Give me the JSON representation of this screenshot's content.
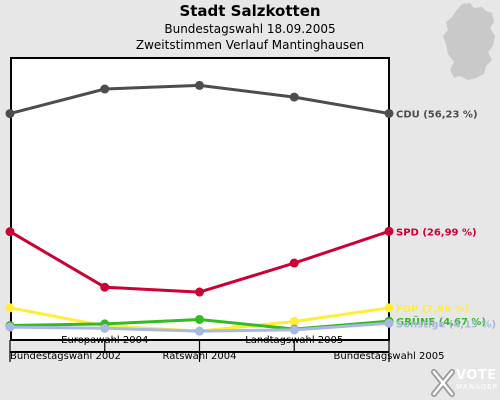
{
  "header": {
    "title": "Stadt Salzkotten",
    "subtitle1": "Bundestagswahl 18.09.2005",
    "subtitle2": "Zweitstimmen Verlauf Mantinghausen"
  },
  "logo": {
    "brand": "VOTE",
    "sub": "MANAGER"
  },
  "chart_data": {
    "type": "line",
    "categories": [
      "Bundestagswahl 2002",
      "Europawahl 2004",
      "Ratswahl 2004",
      "Landtagswahl 2005",
      "Bundestagswahl 2005"
    ],
    "label_rows": [
      "bottom",
      "top",
      "bottom",
      "top",
      "bottom"
    ],
    "ylim": [
      0,
      70
    ],
    "grid": false,
    "series": [
      {
        "name": "CDU",
        "value_label": "CDU (56,23 %)",
        "color": "#4d4d4d",
        "values": [
          56.2,
          62.3,
          63.2,
          60.3,
          56.23
        ]
      },
      {
        "name": "SPD",
        "value_label": "SPD (26,99 %)",
        "color": "#cc0033",
        "values": [
          26.9,
          13.1,
          11.9,
          19.1,
          26.99
        ]
      },
      {
        "name": "FDP",
        "value_label": "FDP (7,96 %)",
        "color": "#ffee33",
        "values": [
          8.0,
          3.5,
          2.2,
          4.6,
          7.96
        ]
      },
      {
        "name": "GRÜNE",
        "value_label": "GRÜNE (4,67 %)",
        "color": "#33bb22",
        "values": [
          3.6,
          4.0,
          5.1,
          2.7,
          4.67
        ]
      },
      {
        "name": "Sonstige",
        "value_label": "Sonstige (4,15 %)",
        "color": "#a8b8e0",
        "values": [
          3.2,
          2.9,
          2.2,
          2.5,
          4.15
        ]
      }
    ]
  }
}
